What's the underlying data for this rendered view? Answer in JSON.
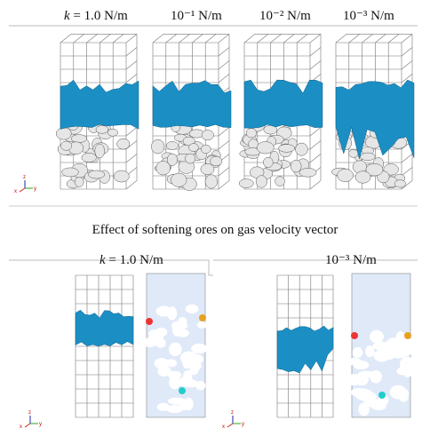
{
  "top_row": {
    "k_symbol": "k",
    "labels": [
      "= 1.0 N/m",
      "10⁻¹ N/m",
      "10⁻² N/m",
      "10⁻³ N/m"
    ]
  },
  "caption": "Effect of softening ores on gas velocity vector",
  "bottom_row": {
    "k_symbol": "k",
    "labels": [
      "= 1.0 N/m",
      "10⁻³ N/m"
    ]
  },
  "triad": {
    "x": "x",
    "y": "y",
    "z": "z"
  }
}
